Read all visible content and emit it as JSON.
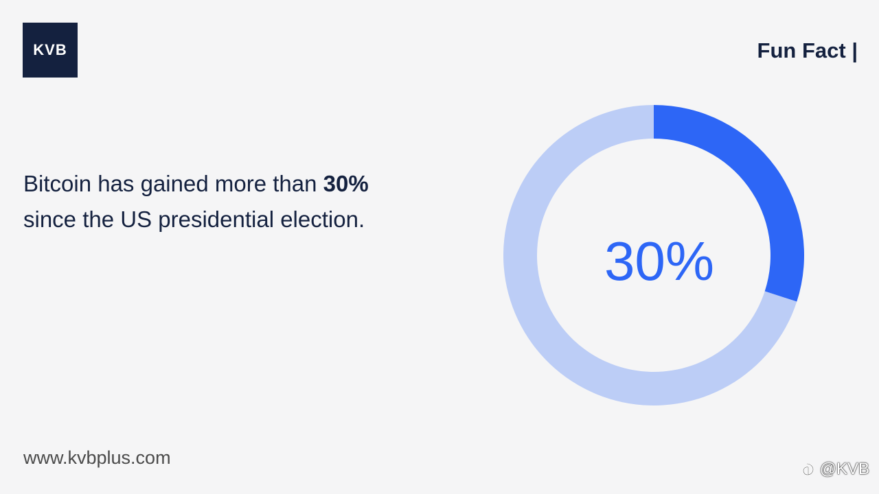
{
  "logo": {
    "text": "KVB"
  },
  "header": {
    "label": "Fun Fact |"
  },
  "headline": {
    "text_before": "Bitcoin has gained more than ",
    "highlight": "30%",
    "text_after": "since the US presidential election."
  },
  "chart_data": {
    "type": "pie",
    "values": [
      30,
      70
    ],
    "center_label": "30%",
    "colors": [
      "#2d66f6",
      "#bccdf6"
    ]
  },
  "footer": {
    "website": "www.kvbplus.com"
  },
  "watermark": {
    "icon": "watermark-logo-icon",
    "handle": "@KVB"
  }
}
